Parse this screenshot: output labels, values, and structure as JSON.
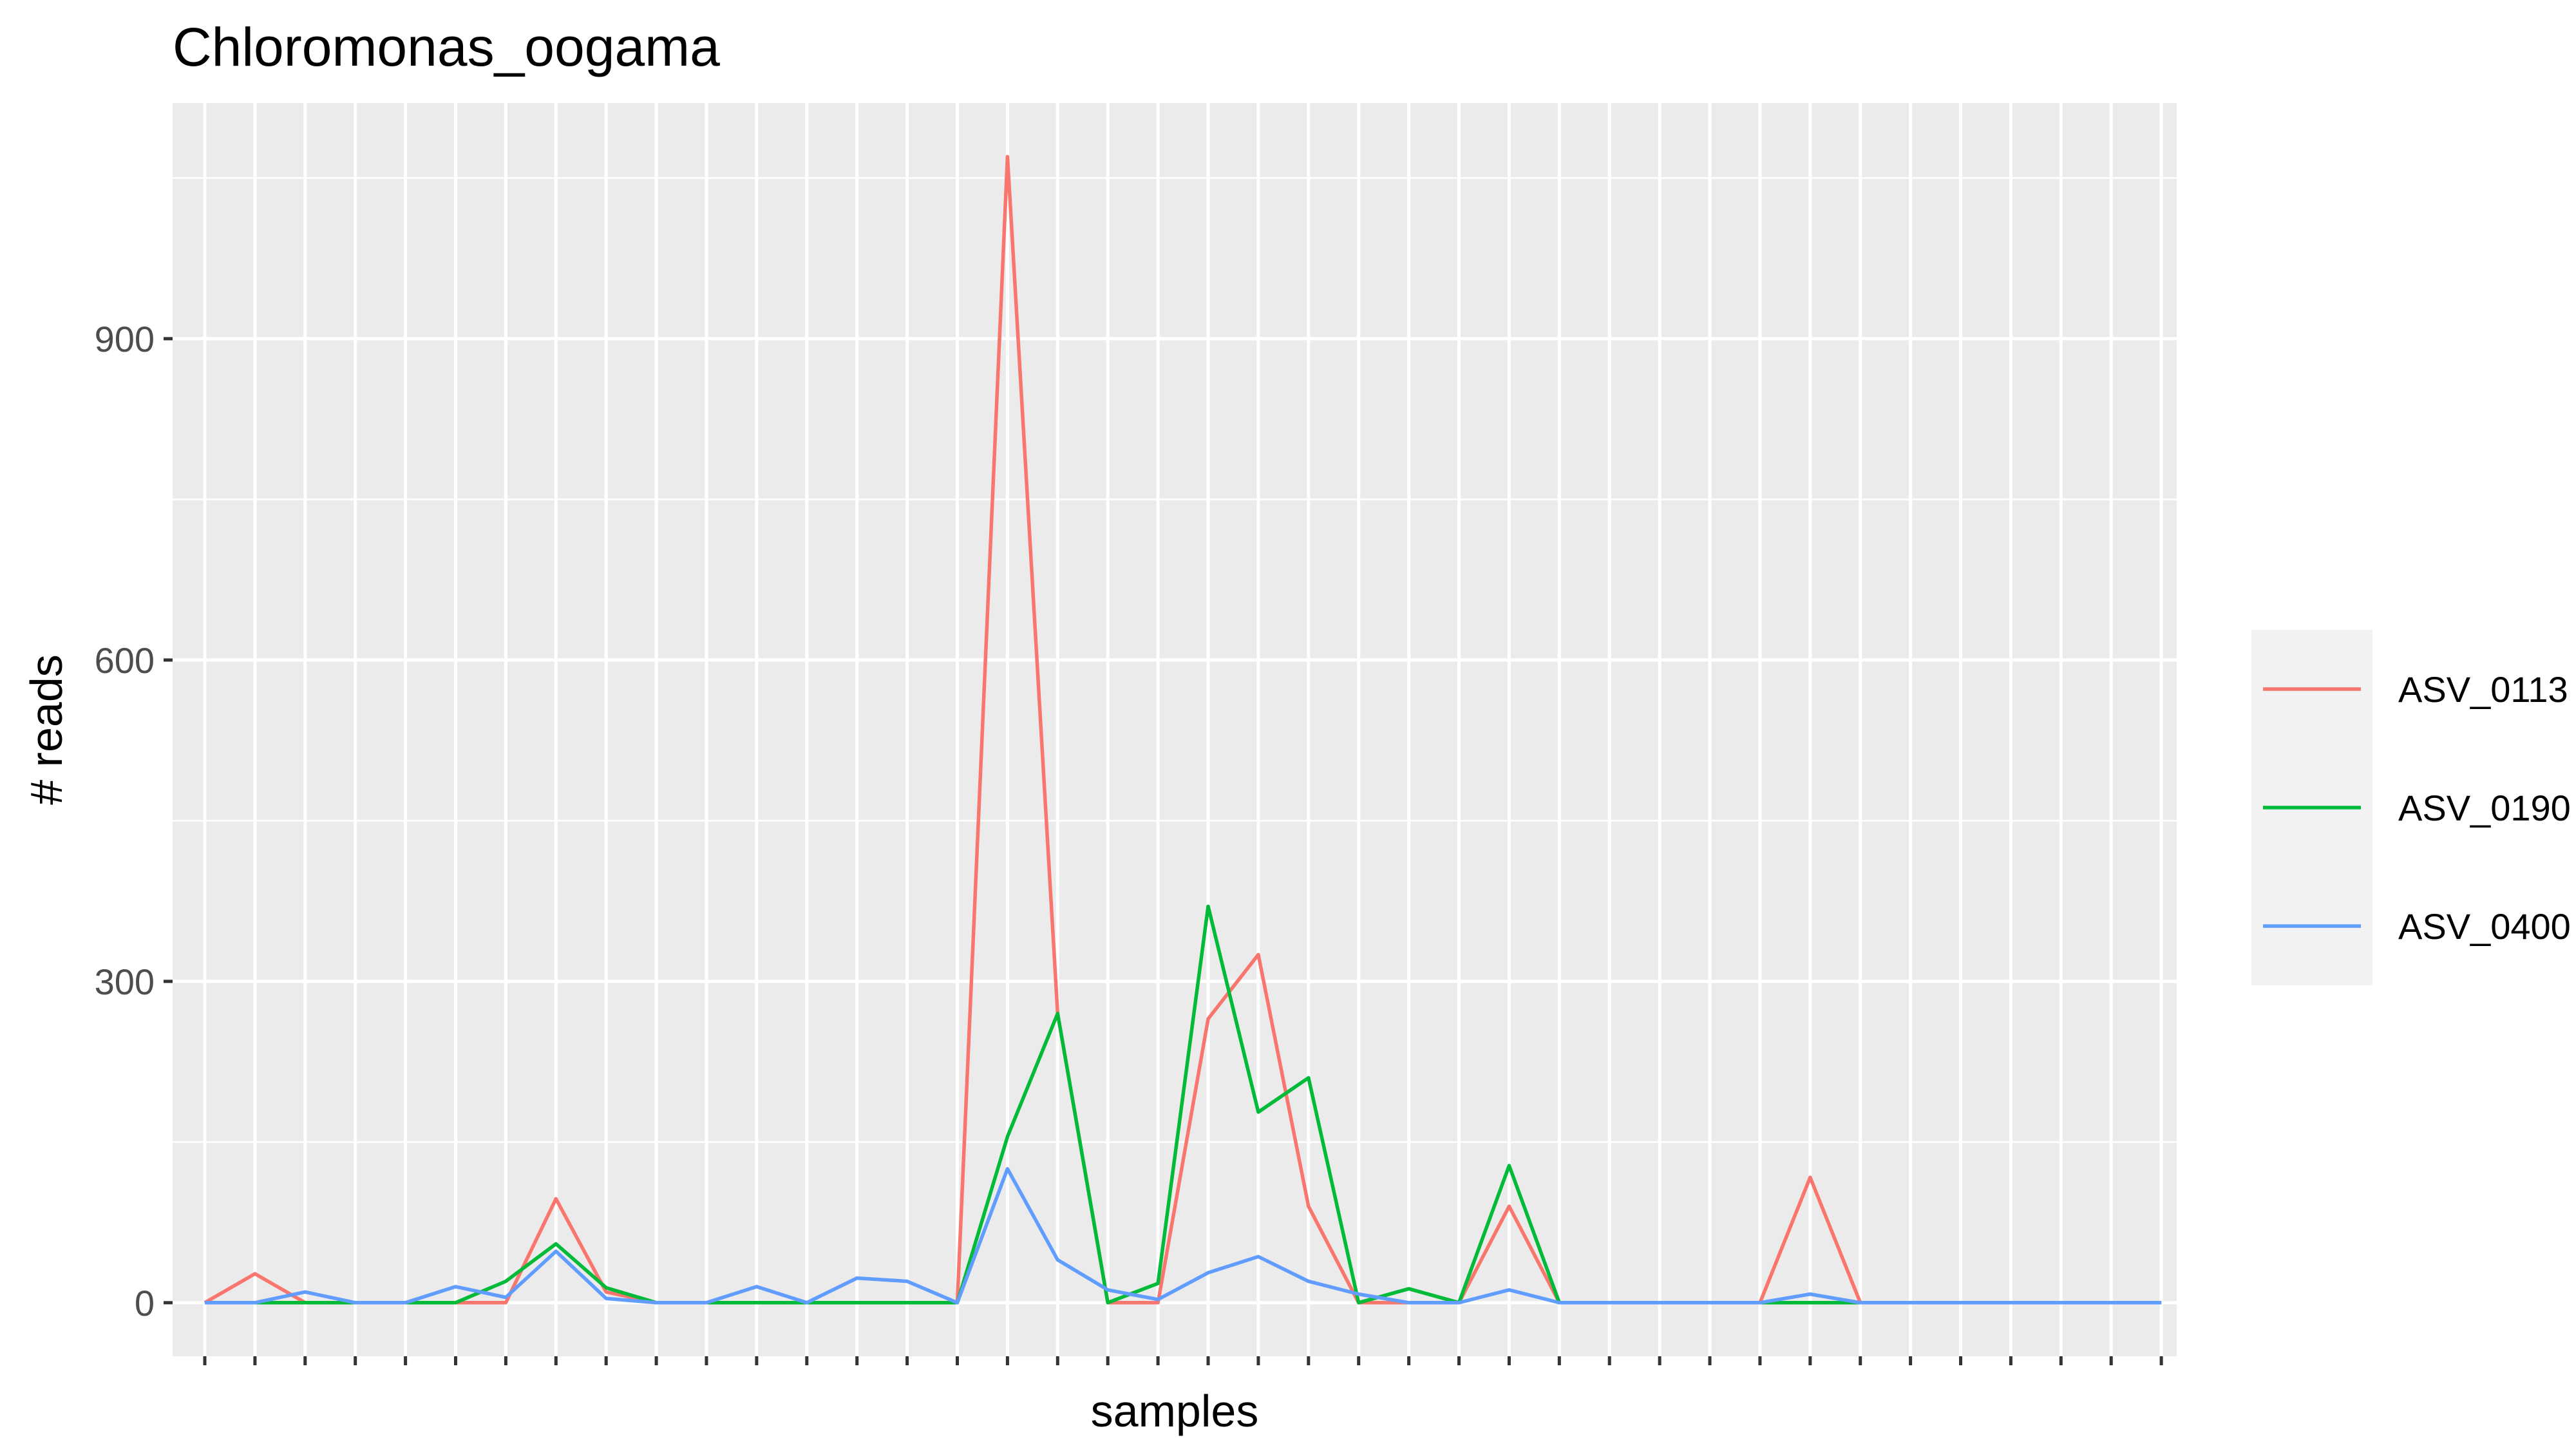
{
  "chart_data": {
    "type": "line",
    "title": "Chloromonas_oogama",
    "xlabel": "samples",
    "ylabel": "# reads",
    "x_count": 40,
    "x_tick_labels_shown": false,
    "ylim": [
      -50,
      1120
    ],
    "y_ticks": [
      0,
      300,
      600,
      900
    ],
    "y_minor_ticks": [
      150,
      450,
      750,
      1050
    ],
    "grid": true,
    "legend_position": "right",
    "series": [
      {
        "name": "ASV_0113",
        "color": "#F8766D",
        "values": [
          0,
          27,
          0,
          0,
          0,
          0,
          0,
          97,
          10,
          0,
          0,
          0,
          0,
          0,
          0,
          0,
          1070,
          270,
          0,
          0,
          265,
          325,
          90,
          0,
          0,
          0,
          90,
          0,
          0,
          0,
          0,
          0,
          117,
          0,
          0,
          0,
          0,
          0,
          0,
          0
        ]
      },
      {
        "name": "ASV_0190",
        "color": "#00BA38",
        "values": [
          0,
          0,
          0,
          0,
          0,
          0,
          20,
          55,
          14,
          0,
          0,
          0,
          0,
          0,
          0,
          0,
          155,
          270,
          0,
          18,
          370,
          178,
          210,
          0,
          13,
          0,
          128,
          0,
          0,
          0,
          0,
          0,
          0,
          0,
          0,
          0,
          0,
          0,
          0,
          0
        ]
      },
      {
        "name": "ASV_0400",
        "color": "#619CFF",
        "values": [
          0,
          0,
          10,
          0,
          0,
          15,
          5,
          48,
          4,
          0,
          0,
          15,
          0,
          23,
          20,
          0,
          125,
          40,
          12,
          3,
          28,
          43,
          20,
          8,
          0,
          0,
          12,
          0,
          0,
          0,
          0,
          0,
          8,
          0,
          0,
          0,
          0,
          0,
          0,
          0
        ]
      }
    ]
  },
  "colors": {
    "panel_background": "#EBEBEB",
    "grid": "#FFFFFF",
    "legend_key_background": "#F2F2F2"
  }
}
